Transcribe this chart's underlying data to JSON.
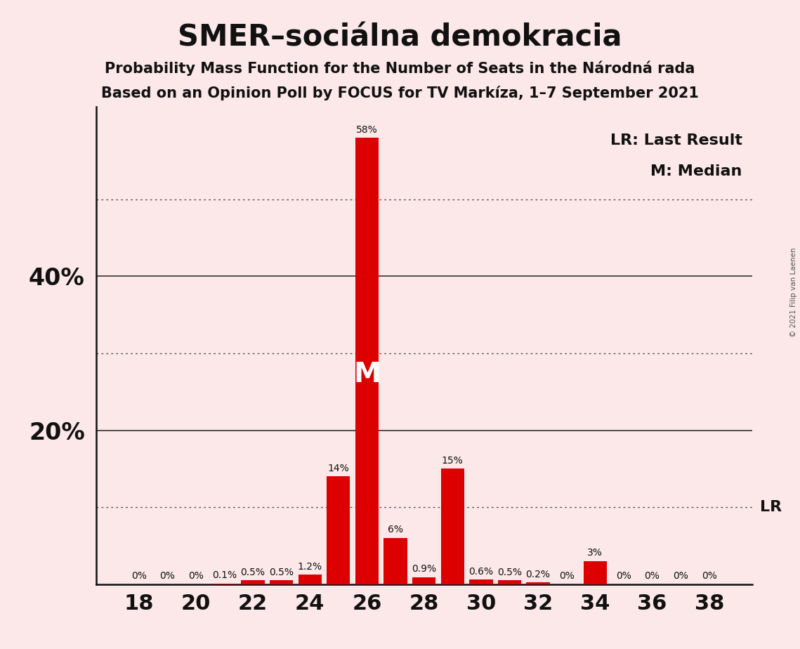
{
  "title": "SMER–sociálna demokracia",
  "subtitle1": "Probability Mass Function for the Number of Seats in the Národná rada",
  "subtitle2": "Based on an Opinion Poll by FOCUS for TV Markíza, 1–7 September 2021",
  "copyright": "© 2021 Filip van Laenen",
  "lr_label": "LR: Last Result",
  "m_label": "M: Median",
  "background_color": "#fce8e8",
  "bar_color": "#dd0000",
  "seats": [
    18,
    19,
    20,
    21,
    22,
    23,
    24,
    25,
    26,
    27,
    28,
    29,
    30,
    31,
    32,
    33,
    34,
    35,
    36,
    37,
    38
  ],
  "probabilities": [
    0.0,
    0.0,
    0.0,
    0.1,
    0.5,
    0.5,
    1.2,
    14.0,
    58.0,
    6.0,
    0.9,
    15.0,
    0.6,
    0.5,
    0.2,
    0.0,
    3.0,
    0.0,
    0.0,
    0.0,
    0.0
  ],
  "labels": [
    "0%",
    "0%",
    "0%",
    "0.1%",
    "0.5%",
    "0.5%",
    "1.2%",
    "14%",
    "58%",
    "6%",
    "0.9%",
    "15%",
    "0.6%",
    "0.5%",
    "0.2%",
    "0%",
    "3%",
    "0%",
    "0%",
    "0%",
    "0%"
  ],
  "median_seat": 26,
  "lr_seat": 38,
  "ylim": [
    0,
    62
  ],
  "solid_yticks": [
    20,
    40
  ],
  "dotted_yticks": [
    10,
    30,
    50
  ],
  "xtick_positions": [
    18,
    20,
    22,
    24,
    26,
    28,
    30,
    32,
    34,
    36,
    38
  ],
  "title_fontsize": 30,
  "subtitle_fontsize": 15,
  "ytick_label_fontsize": 24,
  "xtick_label_fontsize": 22,
  "bar_label_fontsize": 10,
  "annotation_fontsize": 16
}
